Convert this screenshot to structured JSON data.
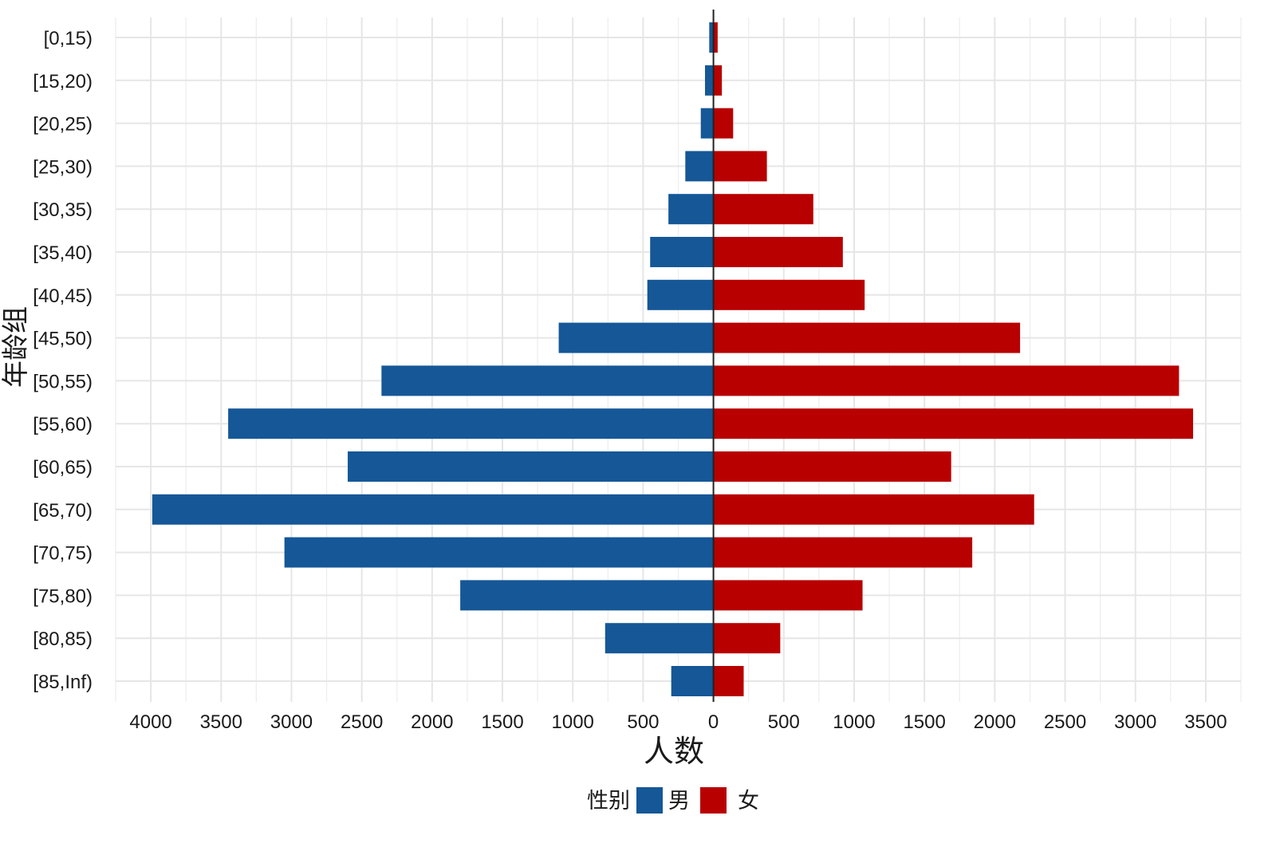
{
  "chart_data": {
    "type": "bar",
    "orientation": "horizontal",
    "subtype": "population-pyramid",
    "title": "",
    "xlabel": "人数",
    "ylabel": "年龄组",
    "categories": [
      "[0,15)",
      "[15,20)",
      "[20,25)",
      "[25,30)",
      "[30,35)",
      "[35,40)",
      "[40,45)",
      "[45,50)",
      "[50,55)",
      "[55,60)",
      "[60,65)",
      "[65,70)",
      "[70,75)",
      "[75,80)",
      "[80,85)",
      "[85,Inf)"
    ],
    "series": [
      {
        "name": "男",
        "direction": "left",
        "color": "#155797",
        "values": [
          30,
          60,
          90,
          200,
          320,
          450,
          470,
          1100,
          2360,
          3450,
          2600,
          3990,
          3050,
          1800,
          770,
          300
        ]
      },
      {
        "name": "女",
        "direction": "right",
        "color": "#B80000",
        "values": [
          30,
          60,
          140,
          380,
          710,
          920,
          1075,
          2180,
          3310,
          3410,
          1690,
          2280,
          1840,
          1060,
          475,
          215
        ]
      }
    ],
    "xlim": [
      -4250,
      3750
    ],
    "x_ticks": [
      -4000,
      -3500,
      -3000,
      -2500,
      -2000,
      -1500,
      -1000,
      -500,
      0,
      500,
      1000,
      1500,
      2000,
      2500,
      3000,
      3500
    ],
    "x_tick_labels": [
      "4000",
      "3500",
      "3000",
      "2500",
      "2000",
      "1500",
      "1000",
      "500",
      "0",
      "500",
      "1000",
      "1500",
      "2000",
      "2500",
      "3000",
      "3500"
    ],
    "grid": true,
    "legend": {
      "title": "性别",
      "position": "bottom",
      "entries": [
        {
          "label": "男",
          "color": "#155797"
        },
        {
          "label": "女",
          "color": "#B80000"
        }
      ]
    }
  }
}
